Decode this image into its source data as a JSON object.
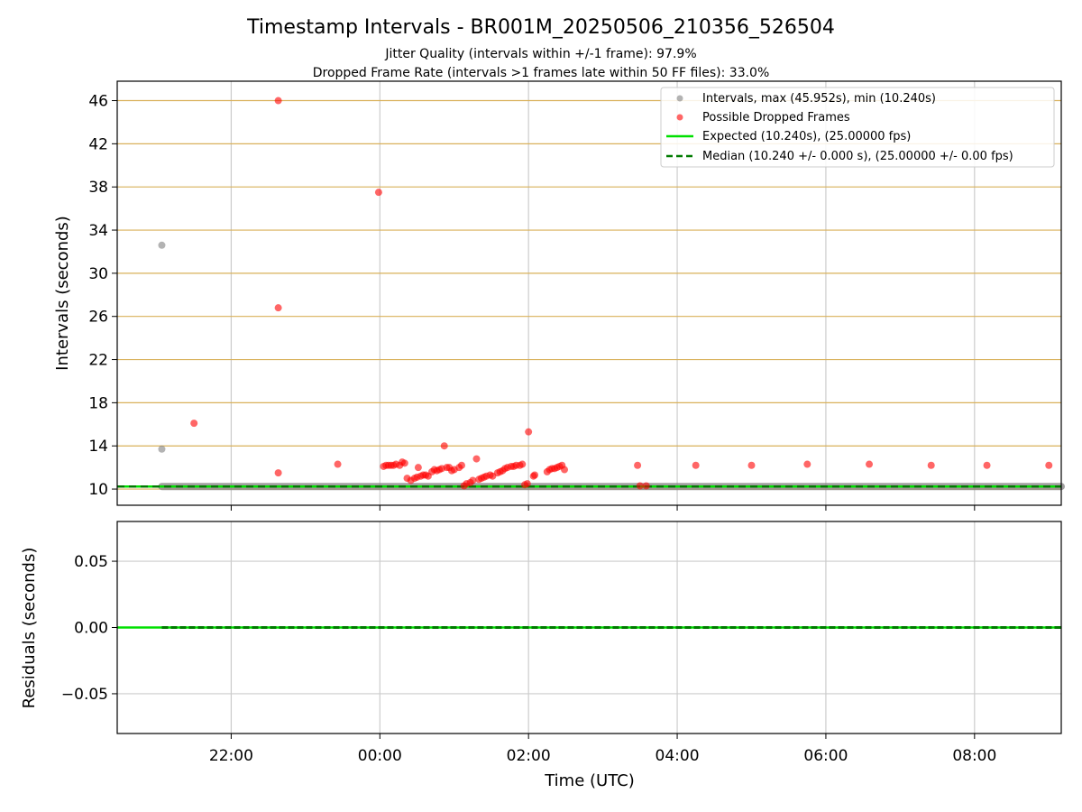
{
  "chart_data": [
    {
      "type": "scatter",
      "panel": "intervals",
      "title": "Timestamp Intervals - BR001M_20250506_210356_526504",
      "subtitle_1": "Jitter Quality (intervals within +/-1 frame): 97.9%",
      "subtitle_2": "Dropped Frame Rate (intervals >1 frames late within 50 FF files): 33.0%",
      "ylabel": "Intervals (seconds)",
      "xlim": [
        "20:28",
        "09:10"
      ],
      "ylim": [
        8.5,
        47.8
      ],
      "yticks": [
        "10",
        "14",
        "18",
        "22",
        "26",
        "30",
        "34",
        "38",
        "42",
        "46"
      ],
      "horizontal_gridlines": "goldenrod",
      "legend_position": "upper right",
      "legend": {
        "intervals": "Intervals, max (45.952s), min (10.240s)",
        "dropped": "Possible Dropped Frames",
        "expected": "Expected (10.240s), (25.00000 fps)",
        "median": "Median (10.240 +/- 0.000 s), (25.00000 +/- 0.00 fps)"
      },
      "colors": {
        "intervals": "#808080",
        "dropped": "#ff0000",
        "expected": "#00e000",
        "median": "#007a00",
        "hgrid": "#d9b15a",
        "vgrid": "#cccccc"
      },
      "series": [
        {
          "name": "Intervals, max (45.952s), min (10.240s)",
          "kind": "points",
          "points": [
            [
              "21:04",
              32.6
            ],
            [
              "21:04",
              13.7
            ]
          ]
        },
        {
          "name": "Intervals, max (45.952s), min (10.240s)",
          "kind": "band",
          "x_range": [
            "21:04",
            "09:10"
          ],
          "y": 10.24
        },
        {
          "name": "Possible Dropped Frames",
          "kind": "points",
          "points": [
            [
              "21:30",
              16.1
            ],
            [
              "22:38",
              46.0
            ],
            [
              "22:38",
              26.8
            ],
            [
              "22:38",
              11.5
            ],
            [
              "23:26",
              12.3
            ],
            [
              "23:59",
              37.5
            ],
            [
              "00:03",
              12.1
            ],
            [
              "00:05",
              12.2
            ],
            [
              "00:07",
              12.2
            ],
            [
              "00:09",
              12.2
            ],
            [
              "00:11",
              12.2
            ],
            [
              "00:13",
              12.3
            ],
            [
              "00:16",
              12.2
            ],
            [
              "00:18",
              12.5
            ],
            [
              "00:20",
              12.4
            ],
            [
              "00:22",
              11.0
            ],
            [
              "00:25",
              10.8
            ],
            [
              "00:28",
              11.0
            ],
            [
              "00:30",
              11.1
            ],
            [
              "00:31",
              12.0
            ],
            [
              "00:33",
              11.2
            ],
            [
              "00:35",
              11.3
            ],
            [
              "00:37",
              11.3
            ],
            [
              "00:39",
              11.2
            ],
            [
              "00:42",
              11.6
            ],
            [
              "00:44",
              11.8
            ],
            [
              "00:46",
              11.7
            ],
            [
              "00:48",
              11.8
            ],
            [
              "00:50",
              11.9
            ],
            [
              "00:52",
              14.0
            ],
            [
              "00:54",
              12.0
            ],
            [
              "00:56",
              12.0
            ],
            [
              "00:58",
              11.7
            ],
            [
              "01:00",
              11.8
            ],
            [
              "01:04",
              12.0
            ],
            [
              "01:06",
              12.2
            ],
            [
              "01:08",
              10.3
            ],
            [
              "01:10",
              10.5
            ],
            [
              "01:13",
              10.6
            ],
            [
              "01:15",
              10.8
            ],
            [
              "01:18",
              12.8
            ],
            [
              "01:20",
              10.9
            ],
            [
              "01:22",
              11.0
            ],
            [
              "01:24",
              11.1
            ],
            [
              "01:26",
              11.2
            ],
            [
              "01:29",
              11.3
            ],
            [
              "01:31",
              11.2
            ],
            [
              "01:35",
              11.5
            ],
            [
              "01:37",
              11.6
            ],
            [
              "01:39",
              11.7
            ],
            [
              "01:41",
              11.9
            ],
            [
              "01:43",
              12.0
            ],
            [
              "01:46",
              12.1
            ],
            [
              "01:48",
              12.1
            ],
            [
              "01:50",
              12.2
            ],
            [
              "01:53",
              12.2
            ],
            [
              "01:55",
              12.3
            ],
            [
              "01:57",
              10.4
            ],
            [
              "01:59",
              10.5
            ],
            [
              "02:00",
              15.3
            ],
            [
              "02:04",
              11.2
            ],
            [
              "02:05",
              11.3
            ],
            [
              "02:15",
              11.6
            ],
            [
              "02:17",
              11.8
            ],
            [
              "02:19",
              11.9
            ],
            [
              "02:21",
              11.9
            ],
            [
              "02:23",
              12.0
            ],
            [
              "02:25",
              12.1
            ],
            [
              "02:27",
              12.2
            ],
            [
              "02:29",
              11.8
            ],
            [
              "03:28",
              12.2
            ],
            [
              "03:30",
              10.3
            ],
            [
              "03:35",
              10.3
            ],
            [
              "04:15",
              12.2
            ],
            [
              "05:00",
              12.2
            ],
            [
              "05:45",
              12.3
            ],
            [
              "06:35",
              12.3
            ],
            [
              "07:25",
              12.2
            ],
            [
              "08:10",
              12.2
            ],
            [
              "09:00",
              12.2
            ]
          ]
        },
        {
          "name": "Expected (10.240s), (25.00000 fps)",
          "kind": "line",
          "y": 10.24
        },
        {
          "name": "Median (10.240 +/- 0.000 s), (25.00000 +/- 0.00 fps)",
          "kind": "line",
          "style": "dashed",
          "y": 10.24
        }
      ]
    },
    {
      "type": "line",
      "panel": "residuals",
      "xlabel": "Time (UTC)",
      "ylabel": "Residuals (seconds)",
      "xlim": [
        "20:28",
        "09:10"
      ],
      "ylim": [
        -0.08,
        0.08
      ],
      "yticks": [
        "0.05",
        "0.00",
        "−0.05"
      ],
      "xticks": [
        "22:00",
        "00:00",
        "02:00",
        "04:00",
        "06:00",
        "08:00"
      ],
      "grid": true,
      "series": [
        {
          "name": "Residuals",
          "kind": "line",
          "y": 0.0
        }
      ]
    }
  ]
}
